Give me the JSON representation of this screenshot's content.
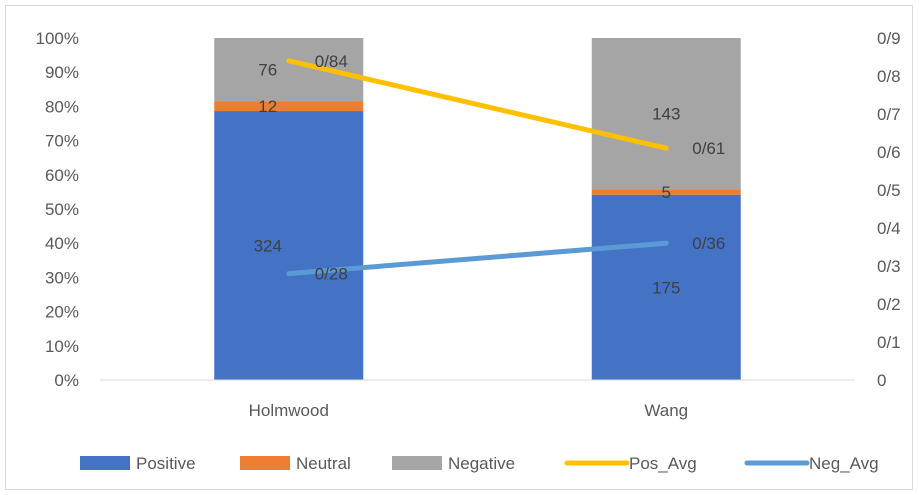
{
  "chart_data": {
    "type": "bar",
    "stacked": "percent",
    "categories": [
      "Holmwood",
      "Wang"
    ],
    "series": [
      {
        "name": "Positive",
        "kind": "bar",
        "axis": "left",
        "color": "#4472c4",
        "values": [
          324,
          175
        ],
        "labels": [
          "324",
          "175"
        ]
      },
      {
        "name": "Neutral",
        "kind": "bar",
        "axis": "left",
        "color": "#ed7d31",
        "values": [
          12,
          5
        ],
        "labels": [
          "12",
          "5"
        ]
      },
      {
        "name": "Negative",
        "kind": "bar",
        "axis": "left",
        "color": "#a5a5a5",
        "values": [
          76,
          143
        ],
        "labels": [
          "76",
          "143"
        ]
      },
      {
        "name": "Pos_Avg",
        "kind": "line",
        "axis": "right",
        "color": "#ffc000",
        "values": [
          0.84,
          0.61
        ],
        "labels": [
          "0/84",
          "0/61"
        ]
      },
      {
        "name": "Neg_Avg",
        "kind": "line",
        "axis": "right",
        "color": "#5b9bd5",
        "values": [
          0.28,
          0.36
        ],
        "labels": [
          "0/28",
          "0/36"
        ]
      }
    ],
    "y_left": {
      "ylim": [
        0,
        100
      ],
      "ticks": [
        "0%",
        "10%",
        "20%",
        "30%",
        "40%",
        "50%",
        "60%",
        "70%",
        "80%",
        "90%",
        "100%"
      ]
    },
    "y_right": {
      "ylim": [
        0,
        0.9
      ],
      "ticks": [
        "0",
        "0/1",
        "0/2",
        "0/3",
        "0/4",
        "0/5",
        "0/6",
        "0/7",
        "0/8",
        "0/9"
      ]
    },
    "grid": false,
    "legend": "bottom",
    "title": "",
    "xlabel": "",
    "ylabel": ""
  }
}
